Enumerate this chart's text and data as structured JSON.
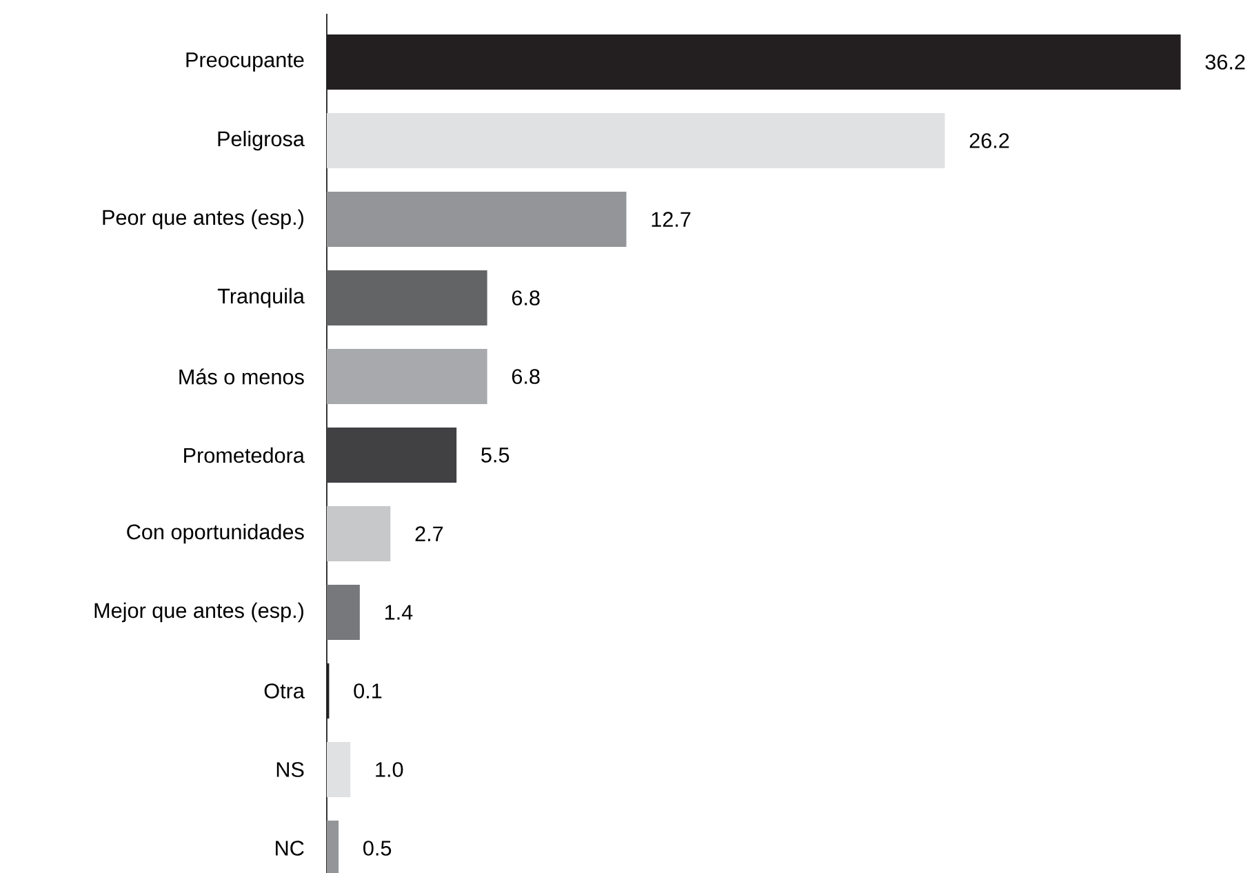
{
  "chart_data": {
    "type": "bar",
    "orientation": "horizontal",
    "categories": [
      "Preocupante",
      "Peligrosa",
      "Peor que antes (esp.)",
      "Tranquila",
      "Más o menos",
      "Prometedora",
      "Con oportunidades",
      "Mejor que antes (esp.)",
      "Otra",
      "NS",
      "NC"
    ],
    "values": [
      36.2,
      26.2,
      12.7,
      6.8,
      6.8,
      5.5,
      2.7,
      1.4,
      0.1,
      1.0,
      0.5
    ],
    "value_labels": [
      "36.2",
      "26.2",
      "12.7",
      "6.8",
      "6.8",
      "5.5",
      "2.7",
      "1.4",
      "0.1",
      "1.0",
      "0.5"
    ],
    "colors": [
      "#231f20",
      "#e0e1e3",
      "#939598",
      "#636466",
      "#a7a9ac",
      "#414042",
      "#c7c8ca",
      "#77787b",
      "#231f20",
      "#e0e1e3",
      "#939598"
    ],
    "legend": false
  }
}
